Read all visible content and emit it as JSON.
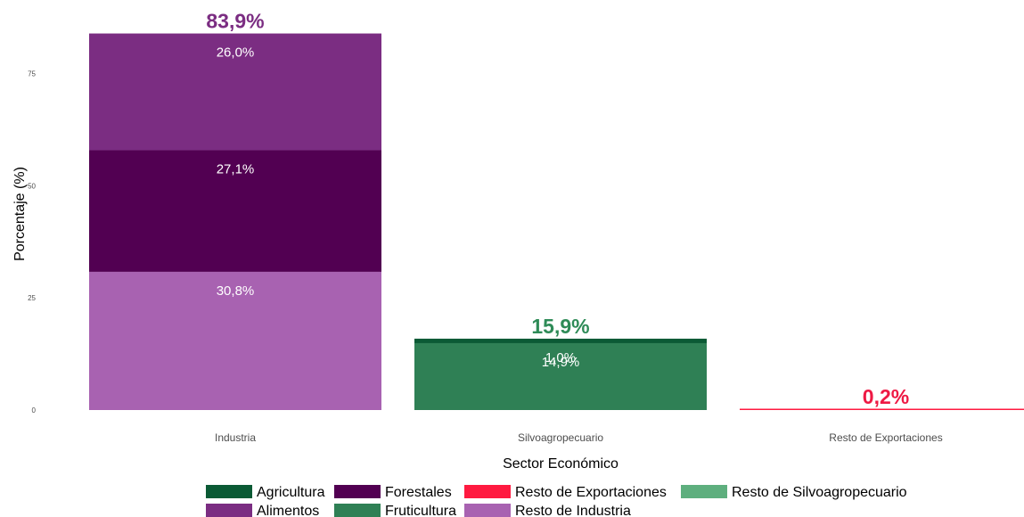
{
  "chart_data": {
    "type": "bar",
    "stacked": true,
    "title": "",
    "xlabel": "Sector Económico",
    "ylabel": "Porcentaje (%)",
    "ylim": [
      0,
      84
    ],
    "yticks": [
      "0",
      "25",
      "50",
      "75"
    ],
    "grid": false,
    "legend_position": "bottom",
    "categories": [
      {
        "name": "Industria",
        "total": 83.9,
        "total_label": "83,9%",
        "total_color": "#7B2D82",
        "segments": [
          {
            "series": "Resto de Industria",
            "value": 30.8,
            "label": "30,8%"
          },
          {
            "series": "Forestales",
            "value": 27.1,
            "label": "27,1%"
          },
          {
            "series": "Alimentos",
            "value": 26.0,
            "label": "26,0%"
          }
        ]
      },
      {
        "name": "Silvoagropecuario",
        "total": 15.9,
        "total_label": "15,9%",
        "total_color": "#2E8B57",
        "segments": [
          {
            "series": "Fruticultura",
            "value": 14.9,
            "label": "14,9%"
          },
          {
            "series": "Agricultura",
            "value": 1.0,
            "label": "1,0%"
          }
        ]
      },
      {
        "name": "Resto de Exportaciones",
        "total": 0.2,
        "total_label": "0,2%",
        "total_color": "#EE1944",
        "segments": [
          {
            "series": "Resto de Exportaciones",
            "value": 0.2,
            "label": ""
          }
        ]
      }
    ],
    "series_colors": {
      "Agricultura": "#0B5A35",
      "Alimentos": "#7B2D82",
      "Forestales": "#520052",
      "Fruticultura": "#2F8055",
      "Resto de Exportaciones": "#FF1A40",
      "Resto de Silvoagropecuario": "#5EAF7E",
      "Resto de Industria": "#A862B1"
    },
    "legend": [
      [
        "Agricultura",
        "Forestales",
        "Resto de Exportaciones",
        "Resto de Silvoagropecuario"
      ],
      [
        "Alimentos",
        "Fruticultura",
        "Resto de Industria"
      ]
    ]
  }
}
